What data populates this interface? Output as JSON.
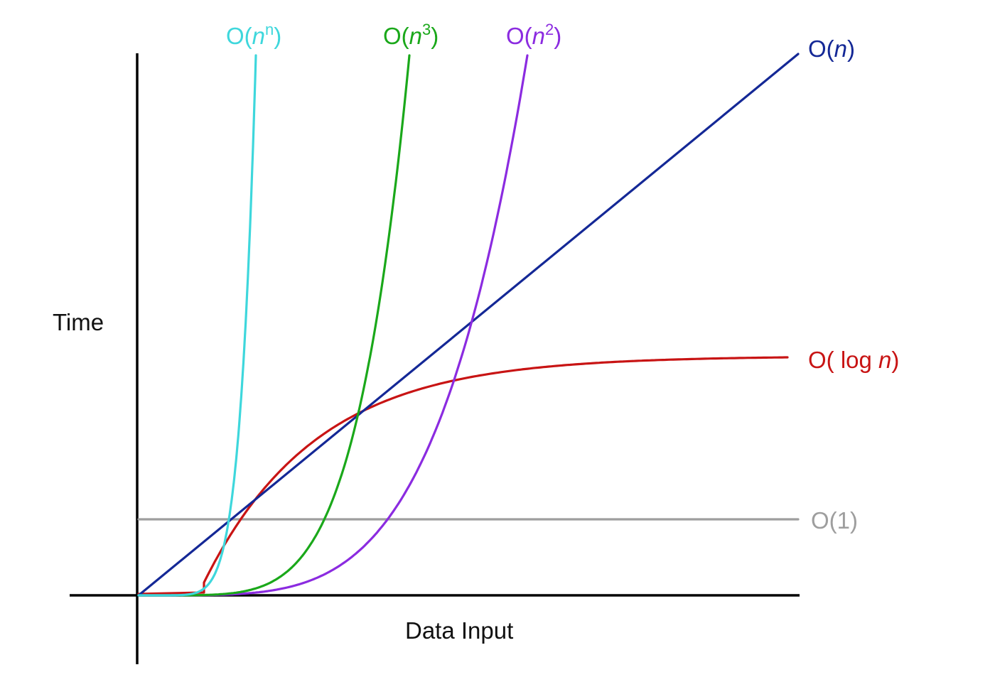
{
  "chart_data": {
    "type": "line",
    "title": "",
    "xlabel": "Data Input",
    "ylabel": "Time",
    "grid": false,
    "legend": "inline-end-labels",
    "series": [
      {
        "key": "nn",
        "label_prefix": "O(",
        "label_var": "n",
        "label_sup": "n",
        "label_suffix": ")",
        "color": "#3ed7dc",
        "description_values": "exponential (n^n) growth curve"
      },
      {
        "key": "n3",
        "label_prefix": "O(",
        "label_var": "n",
        "label_sup": "3",
        "label_suffix": ")",
        "color": "#1aa81a",
        "description_values": "cubic growth curve"
      },
      {
        "key": "n2",
        "label_prefix": "O(",
        "label_var": "n",
        "label_sup": "2",
        "label_suffix": ")",
        "color": "#8b2be0",
        "description_values": "quadratic growth curve"
      },
      {
        "key": "n",
        "label_prefix": "O(",
        "label_var": "n",
        "label_sup": "",
        "label_suffix": ")",
        "color": "#142896",
        "description_values": "linear growth line"
      },
      {
        "key": "logn",
        "label_prefix": "O( log ",
        "label_var": "n",
        "label_sup": "",
        "label_suffix": ")",
        "color": "#c81414",
        "description_values": "logarithmic growth curve"
      },
      {
        "key": "one",
        "label_prefix": "O(1)",
        "label_var": "",
        "label_sup": "",
        "label_suffix": "",
        "color": "#9e9e9e",
        "description_values": "constant horizontal line"
      }
    ]
  }
}
